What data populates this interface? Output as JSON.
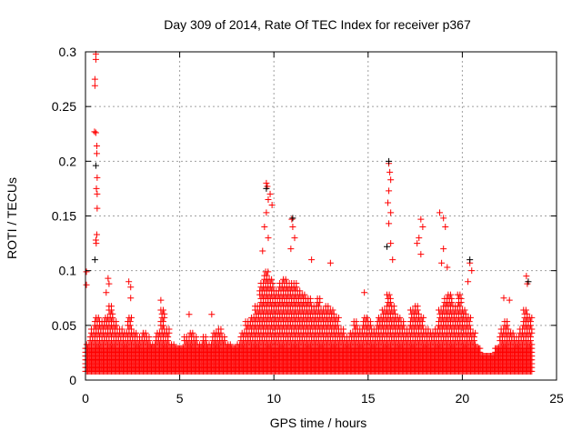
{
  "chart_data": {
    "type": "scatter",
    "title": "Day 309 of 2014, Rate Of TEC Index for receiver p367",
    "xlabel": "GPS time / hours",
    "ylabel": "ROTI / TECUs",
    "xlim": [
      0,
      25
    ],
    "ylim": [
      0,
      0.3
    ],
    "xticks": [
      0,
      5,
      10,
      15,
      20,
      25
    ],
    "xtick_labels": [
      "0",
      "5",
      "10",
      "15",
      "20",
      "25"
    ],
    "yticks": [
      0,
      0.05,
      0.1,
      0.15,
      0.2,
      0.25,
      0.3
    ],
    "ytick_labels": [
      "0",
      "0.05",
      "0.1",
      "0.15",
      "0.2",
      "0.25",
      "0.3"
    ],
    "grid": true,
    "marker": "plus",
    "dense_envelope": {
      "bin_hours": 0.25,
      "ymin": 0.008,
      "upper": [
        0.035,
        0.05,
        0.06,
        0.055,
        0.06,
        0.07,
        0.055,
        0.05,
        0.045,
        0.06,
        0.045,
        0.04,
        0.045,
        0.04,
        0.035,
        0.045,
        0.065,
        0.05,
        0.035,
        0.03,
        0.03,
        0.04,
        0.045,
        0.04,
        0.035,
        0.04,
        0.035,
        0.045,
        0.05,
        0.04,
        0.035,
        0.03,
        0.035,
        0.045,
        0.055,
        0.06,
        0.07,
        0.09,
        0.1,
        0.095,
        0.085,
        0.09,
        0.095,
        0.09,
        0.09,
        0.085,
        0.08,
        0.075,
        0.07,
        0.075,
        0.065,
        0.07,
        0.065,
        0.06,
        0.05,
        0.04,
        0.045,
        0.055,
        0.05,
        0.06,
        0.055,
        0.05,
        0.06,
        0.065,
        0.08,
        0.07,
        0.06,
        0.055,
        0.05,
        0.065,
        0.07,
        0.06,
        0.05,
        0.045,
        0.05,
        0.065,
        0.075,
        0.08,
        0.07,
        0.08,
        0.065,
        0.06,
        0.045,
        0.03,
        0.025,
        0.025,
        0.025,
        0.03,
        0.05,
        0.055,
        0.045,
        0.04,
        0.05,
        0.065,
        0.06,
        null
      ],
      "color": "#ff0000"
    },
    "series": [
      {
        "name": "red",
        "color": "#ff0000",
        "points": [
          [
            0.55,
            0.298
          ],
          [
            0.55,
            0.293
          ],
          [
            0.5,
            0.275
          ],
          [
            0.5,
            0.269
          ],
          [
            0.48,
            0.227
          ],
          [
            0.55,
            0.226
          ],
          [
            0.6,
            0.214
          ],
          [
            0.6,
            0.207
          ],
          [
            0.62,
            0.185
          ],
          [
            0.58,
            0.175
          ],
          [
            0.62,
            0.17
          ],
          [
            0.62,
            0.157
          ],
          [
            0.6,
            0.133
          ],
          [
            0.55,
            0.128
          ],
          [
            0.57,
            0.125
          ],
          [
            0.05,
            0.099
          ],
          [
            0.05,
            0.087
          ],
          [
            1.2,
            0.093
          ],
          [
            1.25,
            0.088
          ],
          [
            1.1,
            0.08
          ],
          [
            2.3,
            0.09
          ],
          [
            2.4,
            0.085
          ],
          [
            2.4,
            0.075
          ],
          [
            4,
            0.073
          ],
          [
            9.6,
            0.18
          ],
          [
            9.65,
            0.177
          ],
          [
            9.8,
            0.17
          ],
          [
            9.7,
            0.165
          ],
          [
            9.9,
            0.16
          ],
          [
            9.6,
            0.153
          ],
          [
            9.5,
            0.14
          ],
          [
            9.7,
            0.13
          ],
          [
            9.4,
            0.118
          ],
          [
            10.95,
            0.147
          ],
          [
            11,
            0.14
          ],
          [
            11.1,
            0.13
          ],
          [
            10.9,
            0.12
          ],
          [
            12,
            0.11
          ],
          [
            13,
            0.107
          ],
          [
            16.1,
            0.198
          ],
          [
            16.15,
            0.19
          ],
          [
            16.2,
            0.183
          ],
          [
            16.1,
            0.173
          ],
          [
            16.05,
            0.162
          ],
          [
            16.2,
            0.153
          ],
          [
            16.1,
            0.143
          ],
          [
            16.2,
            0.125
          ],
          [
            16.3,
            0.11
          ],
          [
            17.8,
            0.147
          ],
          [
            17.9,
            0.14
          ],
          [
            17.7,
            0.13
          ],
          [
            17.6,
            0.125
          ],
          [
            17.8,
            0.115
          ],
          [
            18.8,
            0.153
          ],
          [
            19,
            0.148
          ],
          [
            19.1,
            0.14
          ],
          [
            19,
            0.12
          ],
          [
            18.9,
            0.107
          ],
          [
            19.2,
            0.103
          ],
          [
            20.4,
            0.107
          ],
          [
            20.5,
            0.1
          ],
          [
            20.3,
            0.09
          ],
          [
            23.4,
            0.095
          ],
          [
            23.45,
            0.088
          ],
          [
            22.2,
            0.075
          ],
          [
            22.5,
            0.073
          ],
          [
            14.8,
            0.08
          ],
          [
            6.7,
            0.06
          ],
          [
            5.5,
            0.06
          ]
        ]
      },
      {
        "name": "black",
        "color": "#000000",
        "points": [
          [
            0.55,
            0.196
          ],
          [
            0.5,
            0.11
          ],
          [
            9.6,
            0.175
          ],
          [
            11,
            0.148
          ],
          [
            16.1,
            0.2
          ],
          [
            16,
            0.122
          ],
          [
            20.4,
            0.11
          ],
          [
            23.5,
            0.09
          ]
        ]
      }
    ]
  }
}
